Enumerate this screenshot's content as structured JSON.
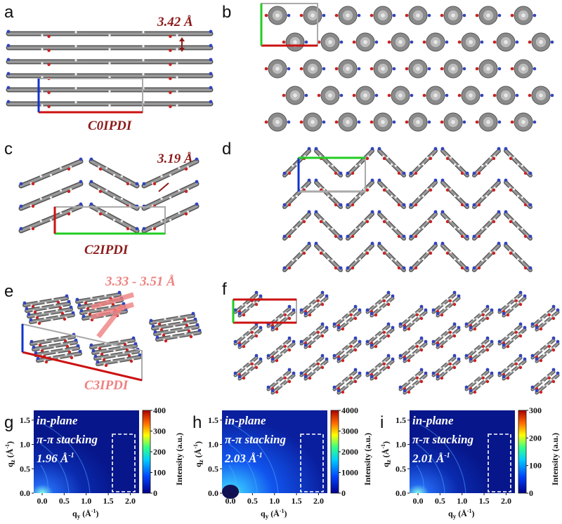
{
  "panels": {
    "a": {
      "label": "a",
      "distance": "3.42 Å",
      "name": "C0IPDI"
    },
    "b": {
      "label": "b"
    },
    "c": {
      "label": "c",
      "distance": "3.19 Å",
      "name": "C2IPDI"
    },
    "d": {
      "label": "d"
    },
    "e": {
      "label": "e",
      "distance": "3.33 - 3.51 Å",
      "name": "C3IPDI"
    },
    "f": {
      "label": "f"
    }
  },
  "giwaxs": [
    {
      "label": "g",
      "overlay_line1": "in-plane",
      "overlay_line2": "π-π stacking",
      "overlay_value": "1.96 Å",
      "overlay_unit_sup": "-1",
      "cbar_ticks": [
        "400",
        "300",
        "200",
        "100",
        "0"
      ],
      "cbar_label": "Intensity (a.u.)"
    },
    {
      "label": "h",
      "overlay_line1": "in-plane",
      "overlay_line2": "π-π stacking",
      "overlay_value": "2.03 Å",
      "overlay_unit_sup": "-1",
      "cbar_ticks": [
        "4000",
        "3000",
        "2000",
        "1000",
        "0"
      ],
      "cbar_label": "Intensity (a.u.)"
    },
    {
      "label": "i",
      "overlay_line1": "in-plane",
      "overlay_line2": "π-π stacking",
      "overlay_value": "2.01 Å",
      "overlay_unit_sup": "-1",
      "cbar_ticks": [
        "300",
        "200",
        "100",
        "0"
      ],
      "cbar_label": "Intensity (a.u.)"
    }
  ],
  "axes": {
    "y_ticks": [
      "1.5",
      "1.0",
      "0.5",
      "0.0"
    ],
    "x_ticks": [
      "0.0",
      "0.5",
      "1.0",
      "1.5",
      "2.0"
    ],
    "ylabel_main": "q",
    "ylabel_sub": "z",
    "ylabel_unit": " (Å",
    "ylabel_sup": "-1",
    "xlabel_main": "q",
    "xlabel_sub": "y",
    "xlabel_unit": " (Å",
    "xlabel_sup": "-1"
  },
  "colors": {
    "dark_red": "#8b1a1a",
    "pink": "#f08080",
    "cell_red": "#cc1111",
    "cell_green": "#22cc22",
    "cell_blue": "#1133cc",
    "cell_gray": "#aaaaaa"
  }
}
